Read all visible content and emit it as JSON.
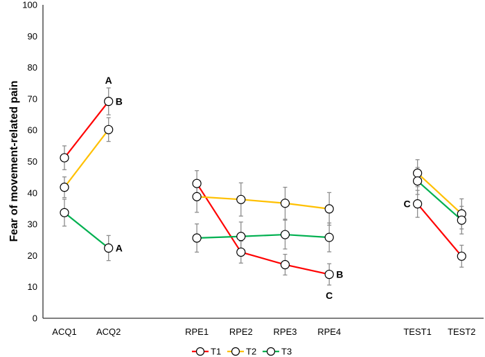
{
  "chart_data": {
    "type": "line",
    "title": "",
    "xlabel": "",
    "ylabel": "Fear of movement-related pain",
    "ylim": [
      0,
      100
    ],
    "yticks": [
      0,
      10,
      20,
      30,
      40,
      50,
      60,
      70,
      80,
      90,
      100
    ],
    "grid": false,
    "legend_position": "bottom",
    "groups": [
      [
        "ACQ1",
        "ACQ2"
      ],
      [
        "RPE1",
        "RPE2",
        "RPE3",
        "RPE4"
      ],
      [
        "TEST1",
        "TEST2"
      ]
    ],
    "categories": [
      "ACQ1",
      "ACQ2",
      "RPE1",
      "RPE2",
      "RPE3",
      "RPE4",
      "TEST1",
      "TEST2"
    ],
    "series": [
      {
        "name": "T1",
        "color": "#ff0000",
        "values": [
          51.2,
          69.2,
          43.0,
          21.1,
          17.1,
          14.0,
          36.5,
          19.8
        ],
        "err": [
          3.8,
          4.3,
          4.1,
          3.5,
          3.3,
          3.4,
          4.3,
          3.5
        ]
      },
      {
        "name": "T2",
        "color": "#ffc000",
        "values": [
          41.8,
          60.2,
          38.8,
          37.9,
          36.7,
          34.9,
          46.3,
          33.3
        ],
        "err": [
          3.3,
          3.8,
          5.0,
          5.3,
          5.1,
          5.2,
          4.3,
          4.8
        ]
      },
      {
        "name": "T3",
        "color": "#00b050",
        "values": [
          33.7,
          22.4,
          25.6,
          26.1,
          26.7,
          25.8,
          43.8,
          31.3
        ],
        "err": [
          4.3,
          4.0,
          4.5,
          4.6,
          4.6,
          4.6,
          4.3,
          4.4
        ]
      }
    ],
    "error_bar_color": "#8c8c8c",
    "annotations": [
      {
        "text": "A",
        "category": "ACQ2",
        "series": "T1",
        "side": "above"
      },
      {
        "text": "B",
        "category": "ACQ2",
        "series": "T1",
        "side": "right"
      },
      {
        "text": "A",
        "category": "ACQ2",
        "series": "T3",
        "side": "right"
      },
      {
        "text": "B",
        "category": "RPE4",
        "series": "T1",
        "side": "right"
      },
      {
        "text": "C",
        "category": "RPE4",
        "series": "T1",
        "side": "below"
      },
      {
        "text": "C",
        "category": "TEST1",
        "series": "T1",
        "side": "left"
      }
    ]
  }
}
